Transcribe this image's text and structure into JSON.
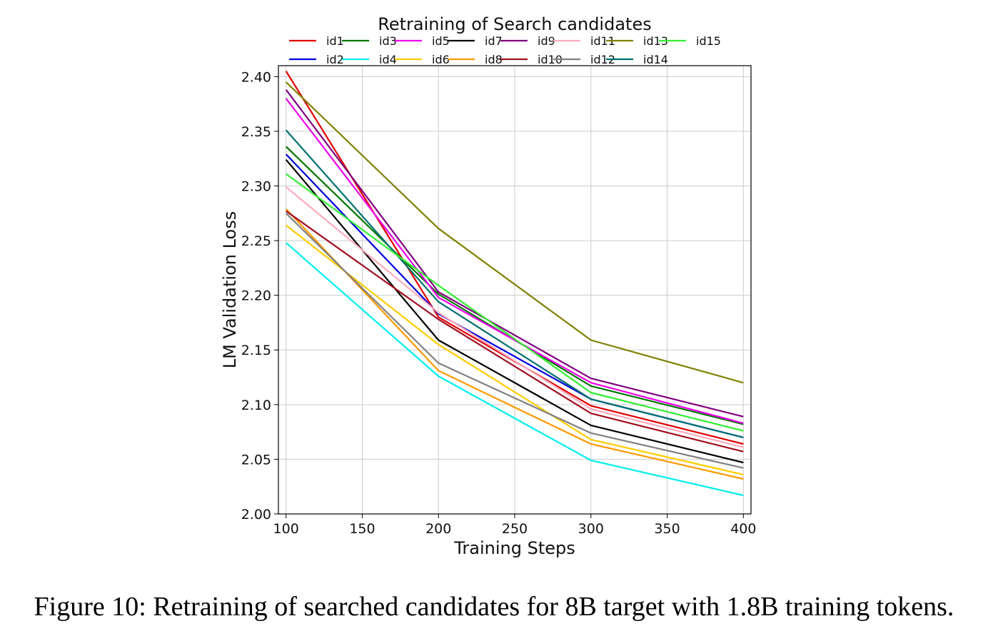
{
  "caption": "Figure 10: Retraining of searched candidates for 8B target with 1.8B training tokens.",
  "chart_data": {
    "type": "line",
    "title": "Retraining of Search candidates",
    "xlabel": "Training Steps",
    "ylabel": "LM Validation Loss",
    "x": [
      100,
      200,
      300,
      400
    ],
    "xlim": [
      95,
      405
    ],
    "ylim": [
      2.0,
      2.41
    ],
    "xticks": [
      100,
      150,
      200,
      250,
      300,
      350,
      400
    ],
    "yticks": [
      2.0,
      2.05,
      2.1,
      2.15,
      2.2,
      2.25,
      2.3,
      2.35,
      2.4
    ],
    "xtick_labels": [
      "100",
      "150",
      "200",
      "250",
      "300",
      "350",
      "400"
    ],
    "ytick_labels": [
      "2.00",
      "2.05",
      "2.10",
      "2.15",
      "2.20",
      "2.25",
      "2.30",
      "2.35",
      "2.40"
    ],
    "grid": true,
    "legend": "top",
    "series": [
      {
        "name": "id1",
        "color": "#e00000",
        "values": [
          2.405,
          2.18,
          2.099,
          2.064
        ]
      },
      {
        "name": "id2",
        "color": "#0000dd",
        "values": [
          2.329,
          2.183,
          2.105,
          2.07
        ]
      },
      {
        "name": "id3",
        "color": "#007700",
        "values": [
          2.336,
          2.201,
          2.117,
          2.082
        ]
      },
      {
        "name": "id4",
        "color": "#00eeee",
        "values": [
          2.248,
          2.126,
          2.049,
          2.017
        ]
      },
      {
        "name": "id5",
        "color": "#ee00ee",
        "values": [
          2.38,
          2.198,
          2.12,
          2.083
        ]
      },
      {
        "name": "id6",
        "color": "#ffcc00",
        "values": [
          2.264,
          2.155,
          2.068,
          2.036
        ]
      },
      {
        "name": "id7",
        "color": "#000000",
        "values": [
          2.324,
          2.159,
          2.081,
          2.047
        ]
      },
      {
        "name": "id8",
        "color": "#ff9900",
        "values": [
          2.279,
          2.131,
          2.064,
          2.032
        ]
      },
      {
        "name": "id9",
        "color": "#800080",
        "values": [
          2.388,
          2.203,
          2.124,
          2.089
        ]
      },
      {
        "name": "id10",
        "color": "#a01020",
        "values": [
          2.277,
          2.178,
          2.092,
          2.057
        ]
      },
      {
        "name": "id11",
        "color": "#ffaabb",
        "values": [
          2.299,
          2.184,
          2.096,
          2.061
        ]
      },
      {
        "name": "id12",
        "color": "#808080",
        "values": [
          2.275,
          2.138,
          2.074,
          2.042
        ]
      },
      {
        "name": "id13",
        "color": "#808000",
        "values": [
          2.395,
          2.261,
          2.159,
          2.12
        ]
      },
      {
        "name": "id14",
        "color": "#007070",
        "values": [
          2.351,
          2.194,
          2.105,
          2.07
        ]
      },
      {
        "name": "id15",
        "color": "#33ee33",
        "values": [
          2.311,
          2.209,
          2.111,
          2.076
        ]
      }
    ]
  }
}
